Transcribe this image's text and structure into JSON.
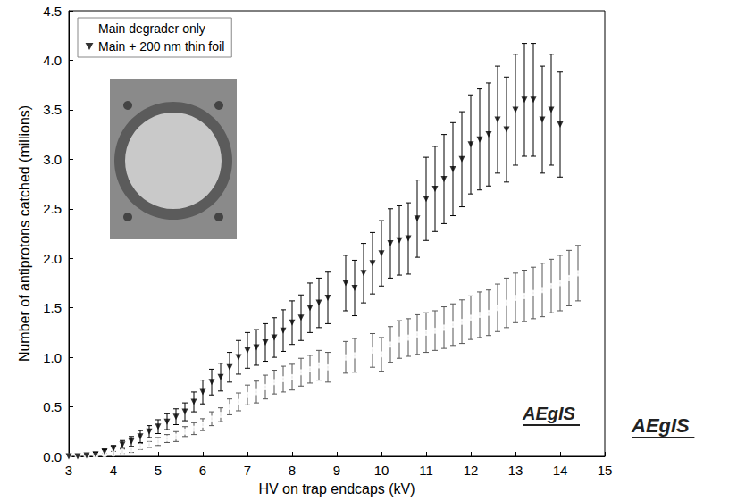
{
  "chart_data": {
    "type": "scatter",
    "x_label": "HV on trap endcaps (kV)",
    "y_label": "Number of antiprotons catched (millions)",
    "xlim": [
      3,
      15
    ],
    "xticks": [
      3,
      4,
      5,
      6,
      7,
      8,
      9,
      10,
      11,
      12,
      13,
      14,
      15
    ],
    "ylim": [
      0,
      4.5
    ],
    "yticks": [
      {
        "value": 0,
        "label": "0.0"
      },
      0.5,
      {
        "value": 1,
        "label": "1.0"
      },
      1.5,
      {
        "value": 2,
        "label": "2.0"
      },
      2.5,
      {
        "value": 3,
        "label": "3.0"
      },
      3.5,
      {
        "value": 4,
        "label": "4.0"
      },
      4.5
    ],
    "grid": false,
    "legend": "top-left",
    "annotations": [
      "AEgIS",
      "AEgIS"
    ],
    "series": [
      {
        "name": "Main degrader only",
        "color": "#555555",
        "marker": "open_circle",
        "x": [
          3.0,
          3.2,
          3.4,
          3.6,
          3.8,
          4.0,
          4.2,
          4.4,
          4.6,
          4.8,
          5.0,
          5.2,
          5.4,
          5.6,
          5.8,
          6.0,
          6.2,
          6.4,
          6.6,
          6.8,
          7.0,
          7.2,
          7.4,
          7.6,
          7.8,
          8.0,
          8.2,
          8.4,
          8.6,
          8.8,
          9.2,
          9.4,
          9.8,
          10.0,
          10.2,
          10.4,
          10.6,
          10.8,
          11.0,
          11.2,
          11.4,
          11.6,
          11.8,
          12.0,
          12.2,
          12.4,
          12.6,
          12.8,
          13.0,
          13.2,
          13.4,
          13.6,
          13.8,
          14.0,
          14.2,
          14.4
        ],
        "values": [
          0,
          0,
          0,
          0.01,
          0.02,
          0.03,
          0.05,
          0.07,
          0.1,
          0.12,
          0.15,
          0.18,
          0.2,
          0.25,
          0.28,
          0.32,
          0.38,
          0.42,
          0.5,
          0.55,
          0.62,
          0.65,
          0.7,
          0.75,
          0.78,
          0.8,
          0.85,
          0.88,
          0.92,
          0.9,
          1.0,
          1.02,
          1.07,
          1.03,
          1.13,
          1.18,
          1.2,
          1.23,
          1.25,
          1.27,
          1.3,
          1.33,
          1.36,
          1.4,
          1.43,
          1.45,
          1.5,
          1.55,
          1.6,
          1.62,
          1.65,
          1.68,
          1.72,
          1.75,
          1.8,
          1.85
        ],
        "errors": [
          0.01,
          0.01,
          0.01,
          0.01,
          0.01,
          0.02,
          0.02,
          0.03,
          0.03,
          0.03,
          0.04,
          0.04,
          0.05,
          0.05,
          0.06,
          0.06,
          0.07,
          0.07,
          0.08,
          0.09,
          0.1,
          0.11,
          0.12,
          0.12,
          0.13,
          0.13,
          0.14,
          0.14,
          0.15,
          0.15,
          0.16,
          0.17,
          0.17,
          0.17,
          0.18,
          0.19,
          0.19,
          0.2,
          0.2,
          0.2,
          0.21,
          0.21,
          0.22,
          0.22,
          0.23,
          0.23,
          0.24,
          0.25,
          0.25,
          0.26,
          0.26,
          0.27,
          0.27,
          0.28,
          0.28,
          0.28
        ]
      },
      {
        "name": "Main + 200 nm thin foil",
        "color": "#000000",
        "marker": "triangle_down",
        "x": [
          3.0,
          3.2,
          3.4,
          3.6,
          3.8,
          4.0,
          4.2,
          4.4,
          4.6,
          4.8,
          5.0,
          5.2,
          5.4,
          5.6,
          5.8,
          6.0,
          6.2,
          6.4,
          6.6,
          6.8,
          7.0,
          7.2,
          7.4,
          7.6,
          7.8,
          8.0,
          8.2,
          8.4,
          8.6,
          8.8,
          9.2,
          9.4,
          9.6,
          9.8,
          10.0,
          10.2,
          10.4,
          10.6,
          10.8,
          11.0,
          11.2,
          11.4,
          11.6,
          11.8,
          12.0,
          12.2,
          12.4,
          12.6,
          12.8,
          13.0,
          13.2,
          13.4,
          13.6,
          13.8,
          14.0
        ],
        "values": [
          0,
          0,
          0.01,
          0.02,
          0.05,
          0.08,
          0.12,
          0.15,
          0.2,
          0.25,
          0.3,
          0.35,
          0.4,
          0.45,
          0.55,
          0.65,
          0.75,
          0.8,
          0.9,
          1.0,
          1.07,
          1.1,
          1.15,
          1.2,
          1.27,
          1.35,
          1.4,
          1.5,
          1.55,
          1.6,
          1.75,
          1.7,
          1.85,
          1.95,
          2.05,
          2.15,
          2.18,
          2.2,
          2.4,
          2.6,
          2.7,
          2.8,
          2.9,
          3.0,
          3.15,
          3.2,
          3.25,
          3.4,
          3.3,
          3.5,
          3.6,
          3.6,
          3.4,
          3.5,
          3.35
        ],
        "errors": [
          0.01,
          0.01,
          0.01,
          0.02,
          0.02,
          0.03,
          0.04,
          0.05,
          0.06,
          0.06,
          0.07,
          0.08,
          0.08,
          0.09,
          0.1,
          0.12,
          0.13,
          0.14,
          0.15,
          0.17,
          0.18,
          0.18,
          0.19,
          0.2,
          0.21,
          0.22,
          0.23,
          0.25,
          0.25,
          0.26,
          0.28,
          0.28,
          0.3,
          0.31,
          0.33,
          0.35,
          0.35,
          0.36,
          0.39,
          0.42,
          0.43,
          0.45,
          0.47,
          0.48,
          0.5,
          0.51,
          0.52,
          0.54,
          0.53,
          0.56,
          0.57,
          0.57,
          0.54,
          0.56,
          0.53
        ]
      }
    ]
  }
}
